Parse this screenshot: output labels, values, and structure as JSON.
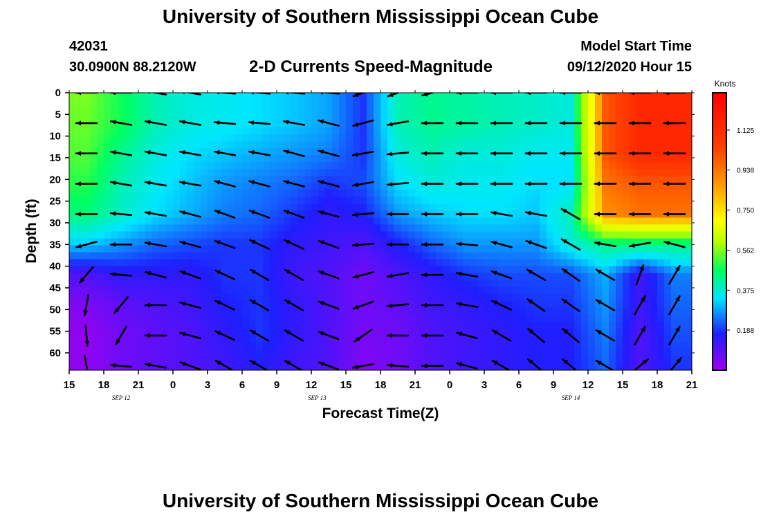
{
  "header": {
    "title": "University of Southern Mississippi Ocean Cube",
    "station_id": "42031",
    "station_coords": "30.0900N 88.2120W",
    "plot_title": "2-D Currents Speed-Magnitude",
    "model_label": "Model Start Time",
    "model_time": "09/12/2020 Hour 15"
  },
  "footer": {
    "title": "University of Southern Mississippi Ocean Cube"
  },
  "chart_data": {
    "type": "heatmap",
    "title": "2-D Currents Speed-Magnitude",
    "xlabel": "Forecast Time(Z)",
    "ylabel": "Depth (ft)",
    "x_ticks": [
      "15",
      "18",
      "21",
      "0",
      "3",
      "6",
      "9",
      "12",
      "15",
      "18",
      "21",
      "0",
      "3",
      "6",
      "9",
      "12",
      "15",
      "18",
      "21"
    ],
    "x_hours": [
      15,
      18,
      21,
      24,
      27,
      30,
      33,
      36,
      39,
      42,
      45,
      48,
      51,
      54,
      57,
      60,
      63,
      66,
      69
    ],
    "x_range_hours": [
      15,
      69
    ],
    "date_labels": [
      {
        "text": "SEP 12",
        "hour": 19.5
      },
      {
        "text": "SEP 13",
        "hour": 36.5
      },
      {
        "text": "SEP 14",
        "hour": 58.5
      }
    ],
    "y_ticks": [
      0,
      5,
      10,
      15,
      20,
      25,
      30,
      35,
      40,
      45,
      50,
      55,
      60
    ],
    "y_range_ft": [
      0,
      64
    ],
    "colorbar": {
      "label": "Knots",
      "ticks": [
        0.188,
        0.375,
        0.562,
        0.75,
        0.938,
        1.125
      ],
      "tick_labels": [
        "0.188",
        "0.375",
        "0.562",
        "0.750",
        "0.938",
        "1.125"
      ],
      "range": [
        0,
        1.3
      ],
      "colors": [
        "#a000f0",
        "#1e1eff",
        "#00e6ff",
        "#00ff60",
        "#b4ff00",
        "#ffff00",
        "#ffa000",
        "#ff4000",
        "#ff0000"
      ]
    },
    "arrow_hours": [
      16.5,
      19.5,
      22.5,
      25.5,
      28.5,
      31.5,
      34.5,
      37.5,
      40.5,
      43.5,
      46.5,
      49.5,
      52.5,
      55.5,
      58.5,
      61.5,
      64.5,
      67.5
    ],
    "arrow_depths_ft": [
      0,
      7,
      14,
      21,
      28,
      35,
      42,
      49,
      56,
      63
    ],
    "speed_grid_knots": [
      [
        0.6,
        0.5,
        0.4,
        0.36,
        0.34,
        0.32,
        0.3,
        0.27,
        0.18,
        0.4,
        0.44,
        0.42,
        0.4,
        0.38,
        0.36,
        1.1,
        1.2,
        1.2
      ],
      [
        0.58,
        0.5,
        0.4,
        0.36,
        0.34,
        0.32,
        0.3,
        0.27,
        0.18,
        0.4,
        0.44,
        0.42,
        0.4,
        0.38,
        0.36,
        1.1,
        1.2,
        1.2
      ],
      [
        0.56,
        0.44,
        0.36,
        0.32,
        0.3,
        0.28,
        0.26,
        0.24,
        0.18,
        0.36,
        0.4,
        0.36,
        0.36,
        0.34,
        0.34,
        1.1,
        1.2,
        1.2
      ],
      [
        0.52,
        0.4,
        0.34,
        0.3,
        0.26,
        0.24,
        0.22,
        0.18,
        0.2,
        0.32,
        0.36,
        0.34,
        0.34,
        0.32,
        0.32,
        1.05,
        1.1,
        1.1
      ],
      [
        0.46,
        0.38,
        0.32,
        0.28,
        0.24,
        0.22,
        0.18,
        0.14,
        0.16,
        0.26,
        0.3,
        0.32,
        0.32,
        0.3,
        0.4,
        1.0,
        1.05,
        1.05
      ],
      [
        0.3,
        0.26,
        0.22,
        0.2,
        0.18,
        0.18,
        0.14,
        0.12,
        0.1,
        0.16,
        0.22,
        0.26,
        0.26,
        0.26,
        0.36,
        0.44,
        0.44,
        0.44
      ],
      [
        0.1,
        0.14,
        0.14,
        0.14,
        0.18,
        0.18,
        0.12,
        0.1,
        0.06,
        0.1,
        0.14,
        0.18,
        0.2,
        0.2,
        0.2,
        0.28,
        0.12,
        0.24
      ],
      [
        0.04,
        0.08,
        0.1,
        0.12,
        0.16,
        0.18,
        0.14,
        0.1,
        0.06,
        0.08,
        0.12,
        0.14,
        0.16,
        0.18,
        0.18,
        0.26,
        0.12,
        0.22
      ],
      [
        0.02,
        0.06,
        0.08,
        0.1,
        0.14,
        0.18,
        0.14,
        0.1,
        0.05,
        0.06,
        0.1,
        0.12,
        0.14,
        0.16,
        0.16,
        0.24,
        0.1,
        0.2
      ],
      [
        0.02,
        0.06,
        0.08,
        0.1,
        0.12,
        0.16,
        0.12,
        0.1,
        0.04,
        0.06,
        0.1,
        0.12,
        0.14,
        0.16,
        0.16,
        0.22,
        0.1,
        0.18
      ]
    ],
    "direction_deg": [
      [
        180,
        180,
        170,
        170,
        175,
        175,
        175,
        175,
        200,
        200,
        195,
        180,
        180,
        180,
        180,
        180,
        180,
        180
      ],
      [
        180,
        170,
        170,
        170,
        175,
        175,
        170,
        165,
        195,
        190,
        180,
        180,
        180,
        180,
        180,
        180,
        180,
        180
      ],
      [
        180,
        170,
        170,
        170,
        170,
        170,
        165,
        165,
        190,
        185,
        180,
        180,
        180,
        180,
        180,
        180,
        180,
        180
      ],
      [
        180,
        170,
        170,
        170,
        165,
        165,
        165,
        165,
        190,
        185,
        180,
        180,
        180,
        180,
        180,
        180,
        180,
        180
      ],
      [
        180,
        175,
        170,
        165,
        160,
        160,
        160,
        165,
        185,
        180,
        180,
        180,
        170,
        170,
        150,
        180,
        180,
        180
      ],
      [
        195,
        180,
        170,
        165,
        160,
        155,
        155,
        160,
        185,
        180,
        180,
        175,
        165,
        160,
        150,
        170,
        190,
        165
      ],
      [
        230,
        175,
        165,
        160,
        155,
        150,
        150,
        160,
        195,
        190,
        180,
        170,
        160,
        150,
        145,
        150,
        70,
        60
      ],
      [
        260,
        230,
        180,
        165,
        155,
        150,
        150,
        160,
        200,
        185,
        180,
        170,
        155,
        145,
        145,
        150,
        60,
        60
      ],
      [
        275,
        240,
        180,
        165,
        155,
        150,
        150,
        160,
        215,
        180,
        180,
        165,
        150,
        140,
        140,
        150,
        60,
        60
      ],
      [
        280,
        175,
        170,
        160,
        150,
        150,
        150,
        160,
        190,
        175,
        180,
        165,
        150,
        140,
        140,
        150,
        40,
        50
      ]
    ]
  }
}
